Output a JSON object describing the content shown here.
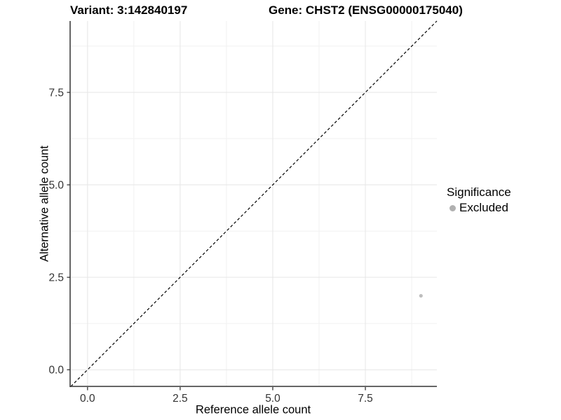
{
  "chart_data": {
    "type": "scatter",
    "title_left": "Variant: 3:142840197",
    "title_right": "Gene: CHST2 (ENSG00000175040)",
    "xlabel": "Reference allele count",
    "ylabel": "Alternative allele count",
    "xlim": [
      -0.47,
      9.43
    ],
    "ylim": [
      -0.45,
      9.43
    ],
    "x_ticks": [
      0,
      2.5,
      5,
      7.5
    ],
    "x_tick_labels": [
      "0.0",
      "2.5",
      "5.0",
      "7.5"
    ],
    "y_ticks": [
      0,
      2.5,
      5,
      7.5
    ],
    "y_tick_labels": [
      "0.0",
      "2.5",
      "5.0",
      "7.5"
    ],
    "x_minor_ticks": [
      1.25,
      3.75,
      6.25,
      8.75
    ],
    "y_minor_ticks": [
      1.25,
      3.75,
      6.25,
      8.75
    ],
    "grid": {
      "major_color": "#e6e6e6",
      "minor_color": "#f1f1f1"
    },
    "diagonal_line": {
      "slope": 1,
      "intercept": 0,
      "style": "dashed",
      "color": "#000000"
    },
    "series": [
      {
        "name": "Excluded",
        "color": "#bebebe",
        "points": [
          {
            "x": 9,
            "y": 2
          }
        ]
      }
    ],
    "legend": {
      "title": "Significance",
      "position": "right",
      "items": [
        {
          "label": "Excluded",
          "color": "#b0b0b0"
        }
      ]
    }
  },
  "colors": {
    "axis_line": "#333333",
    "tick_mark": "#333333",
    "tick_label": "#333333",
    "background": "#ffffff"
  }
}
